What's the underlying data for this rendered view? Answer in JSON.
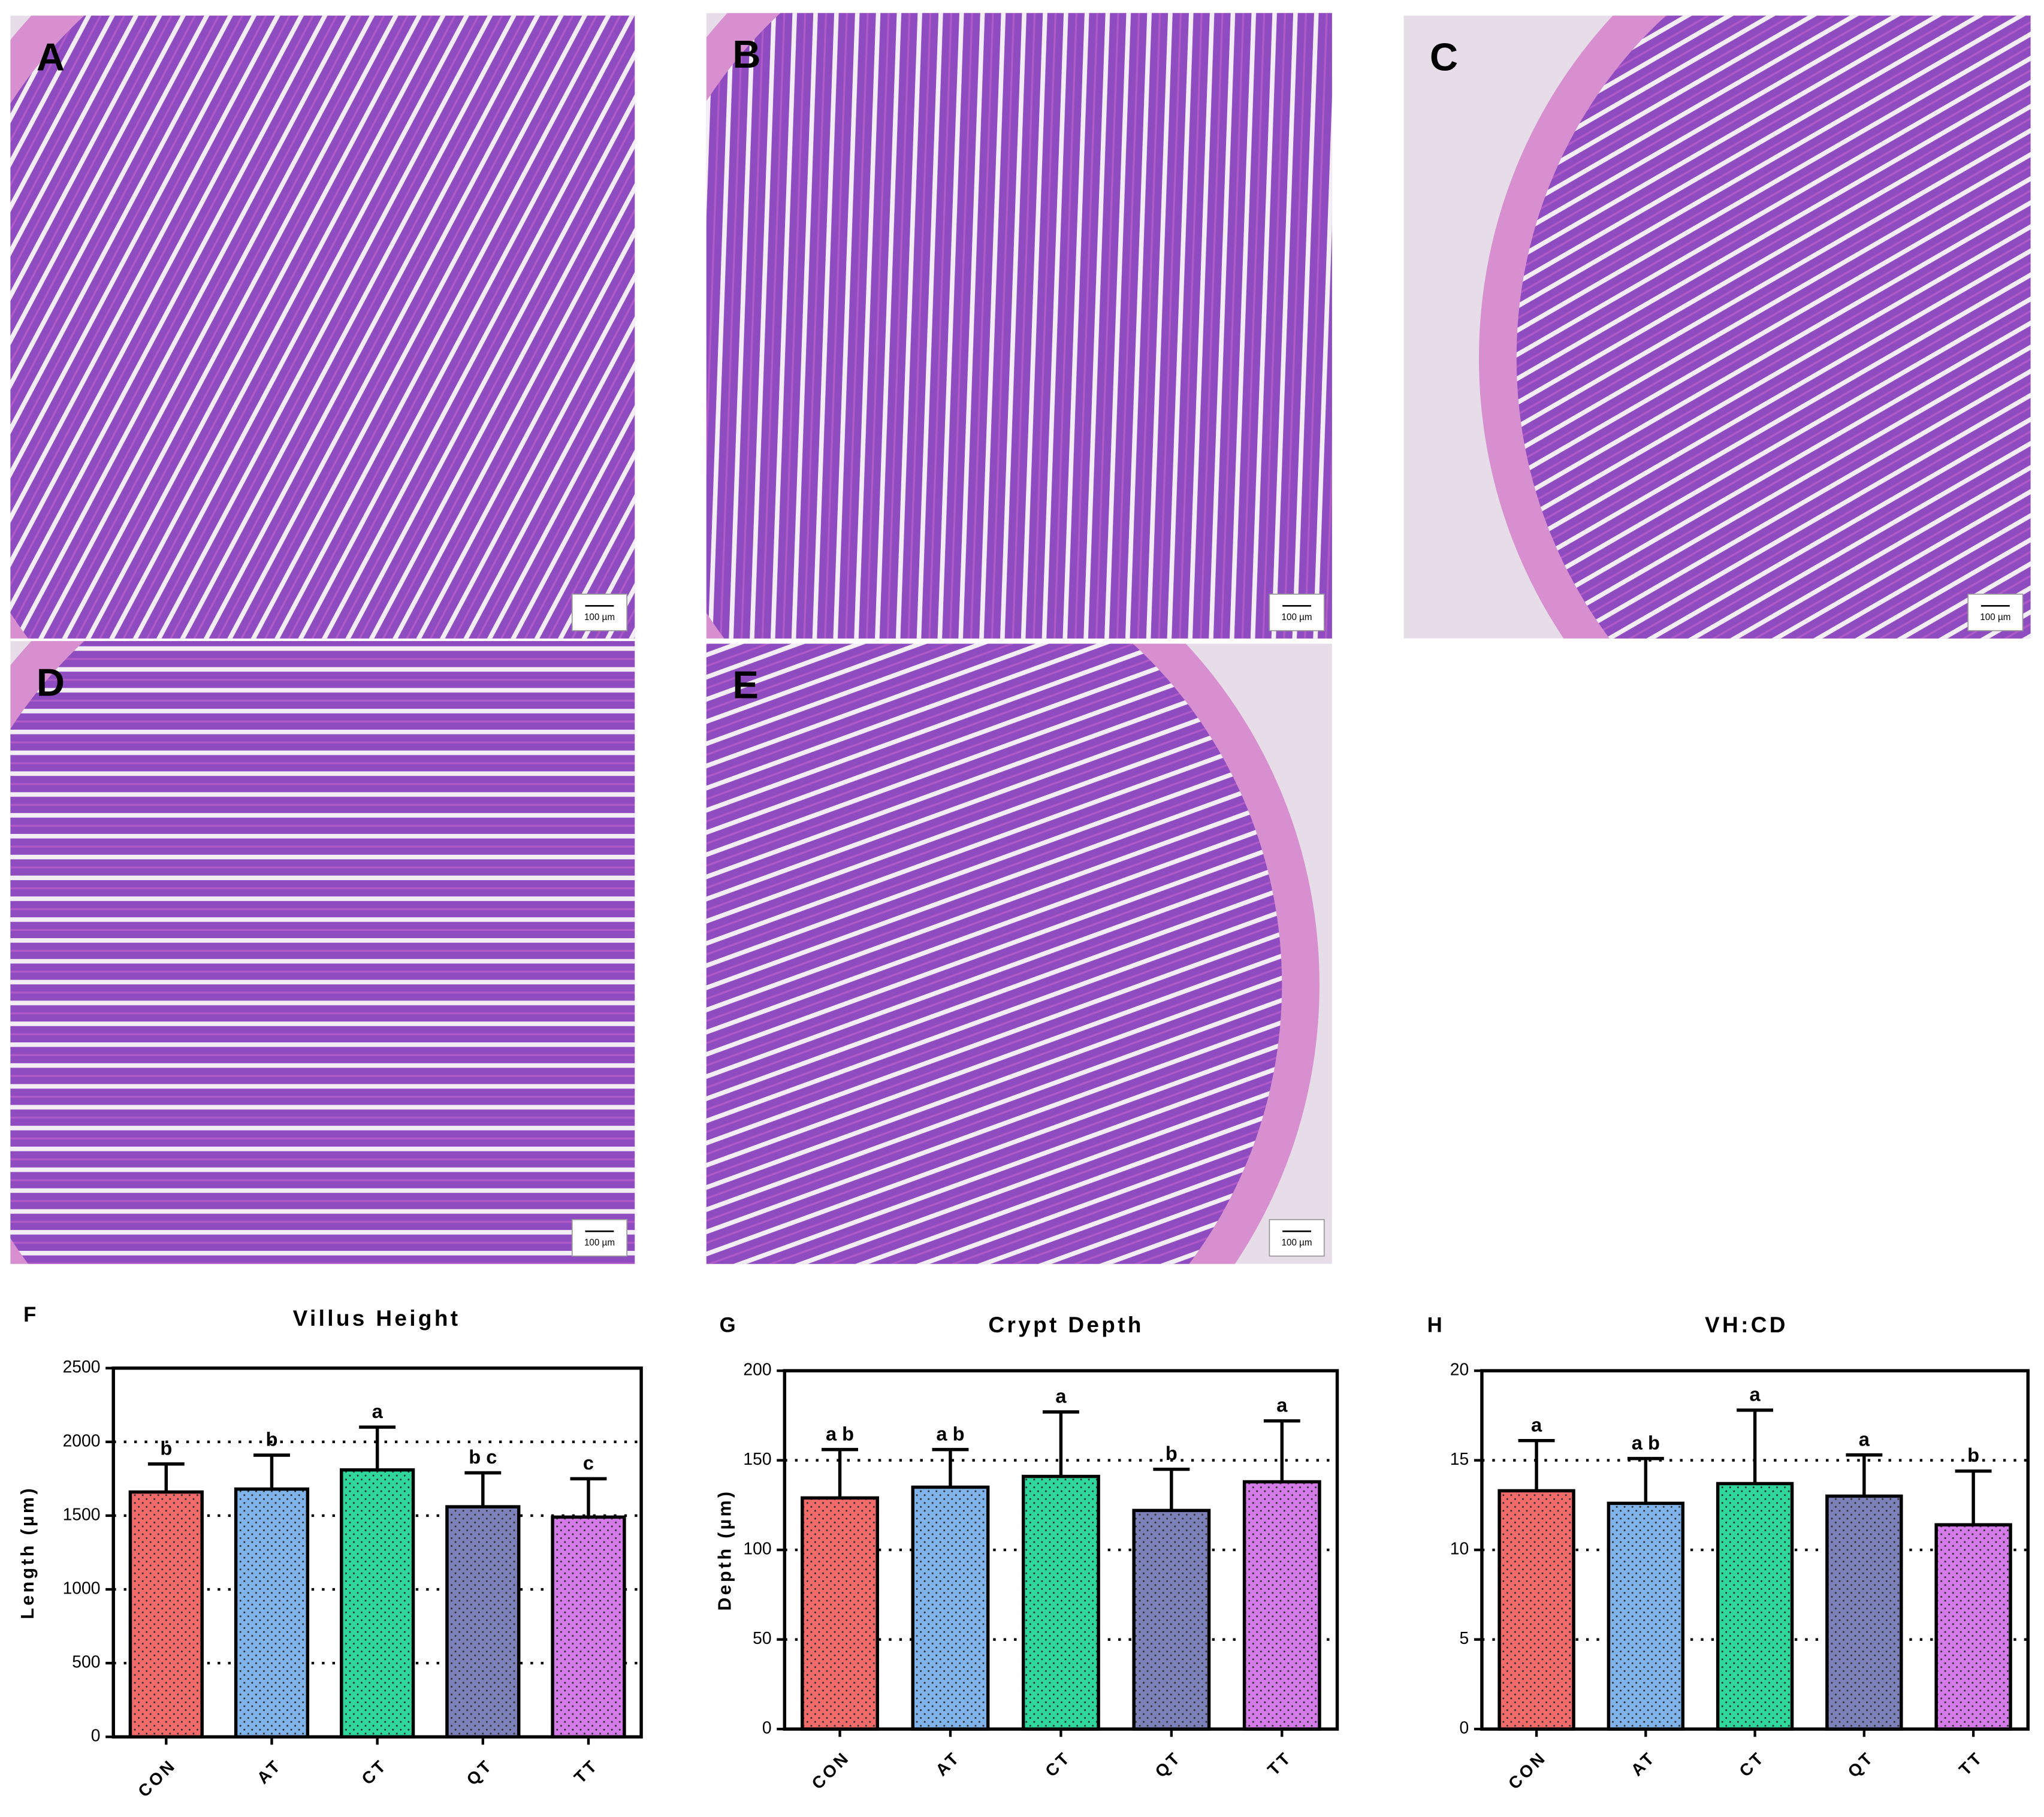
{
  "panels": [
    {
      "label": "A",
      "scale_bar": "100 µm"
    },
    {
      "label": "B",
      "scale_bar": "100 µm"
    },
    {
      "label": "C",
      "scale_bar": "100 µm"
    },
    {
      "label": "D",
      "scale_bar": "100 µm"
    },
    {
      "label": "E",
      "scale_bar": "100 µm"
    }
  ],
  "chart_data": [
    {
      "type": "bar",
      "panel_label": "F",
      "title": "Villus Height",
      "y_label": "Length (µm)",
      "categories": [
        "CON",
        "AT",
        "CT",
        "QT",
        "TT"
      ],
      "values": [
        1660,
        1680,
        1810,
        1560,
        1490
      ],
      "errors": [
        190,
        230,
        290,
        230,
        260
      ],
      "annotations": [
        "b",
        "b",
        "a",
        "b c",
        "c"
      ],
      "colors": [
        "#f26b6b",
        "#80b3ea",
        "#2fd89a",
        "#7d81ba",
        "#d57be9"
      ],
      "ylim": [
        0,
        2500
      ],
      "yticks": [
        0,
        500,
        1000,
        1500,
        2000,
        2500
      ],
      "grid": true
    },
    {
      "type": "bar",
      "panel_label": "G",
      "title": "Crypt Depth",
      "y_label": "Depth (µm)",
      "categories": [
        "CON",
        "AT",
        "CT",
        "QT",
        "TT"
      ],
      "values": [
        129,
        135,
        141,
        122,
        138
      ],
      "errors": [
        27,
        21,
        36,
        23,
        34
      ],
      "annotations": [
        "a b",
        "a b",
        "a",
        "b",
        "a"
      ],
      "colors": [
        "#f26b6b",
        "#80b3ea",
        "#2fd89a",
        "#7d81ba",
        "#d57be9"
      ],
      "ylim": [
        0,
        200
      ],
      "yticks": [
        0,
        50,
        100,
        150,
        200
      ],
      "grid": true
    },
    {
      "type": "bar",
      "panel_label": "H",
      "title": "VH:CD",
      "categories": [
        "CON",
        "AT",
        "CT",
        "QT",
        "TT"
      ],
      "values": [
        13.3,
        12.6,
        13.7,
        13.0,
        11.4
      ],
      "errors": [
        2.8,
        2.5,
        4.1,
        2.3,
        3.0
      ],
      "annotations": [
        "a",
        "a b",
        "a",
        "a",
        "b"
      ],
      "colors": [
        "#f26b6b",
        "#80b3ea",
        "#2fd89a",
        "#7d81ba",
        "#d57be9"
      ],
      "ylim": [
        0,
        20
      ],
      "yticks": [
        0,
        5,
        10,
        15,
        20
      ],
      "grid": true
    }
  ]
}
